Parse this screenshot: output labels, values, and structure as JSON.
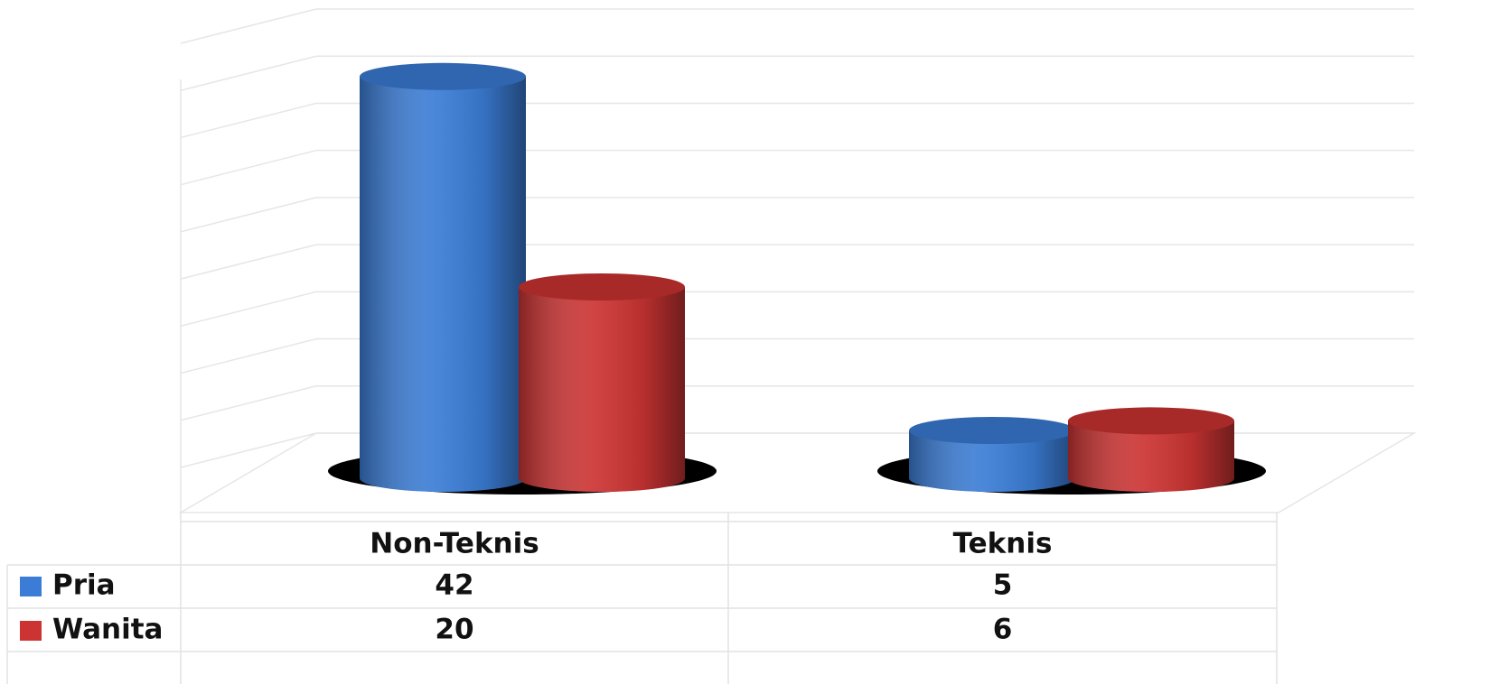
{
  "chart_data": {
    "type": "bar3d",
    "categories": [
      "Non-Teknis",
      "Teknis"
    ],
    "series": [
      {
        "name": "Pria",
        "color": "#3b7dd6",
        "values": [
          42,
          5
        ]
      },
      {
        "name": "Wanita",
        "color": "#cc3433",
        "values": [
          20,
          6
        ]
      }
    ],
    "ylim": [
      0,
      45
    ],
    "yticks": [
      0,
      5,
      10,
      15,
      20,
      25,
      30,
      35,
      40,
      45
    ],
    "grid": true,
    "legend": "table"
  }
}
